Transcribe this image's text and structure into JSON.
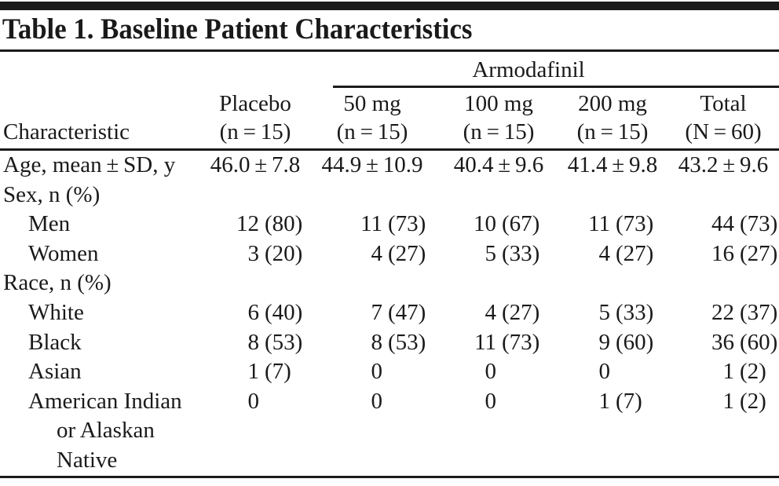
{
  "figure": {
    "title": "Table 1. Baseline Patient Characteristics"
  },
  "colors": {
    "ink": "#1a1a1a",
    "background": "#ffffff"
  },
  "table": {
    "group_header": "Armodafinil",
    "columns": [
      {
        "line1": "",
        "line2": "Characteristic"
      },
      {
        "line1": "Placebo",
        "line2": "(n = 15)"
      },
      {
        "line1": "50 mg",
        "line2": "(n = 15)"
      },
      {
        "line1": "100 mg",
        "line2": "(n = 15)"
      },
      {
        "line1": "200 mg",
        "line2": "(n = 15)"
      },
      {
        "line1": "Total",
        "line2": "(N = 60)"
      }
    ],
    "rows": [
      {
        "label": [
          "Age, mean ± SD, y"
        ],
        "indent": 0,
        "type": "center",
        "cells": [
          "46.0 ± 7.8",
          "44.9 ± 10.9",
          "40.4 ± 9.6",
          "41.4 ± 9.8",
          "43.2 ± 9.6"
        ]
      },
      {
        "label": [
          "Sex, n (%)"
        ],
        "indent": 0,
        "type": "none",
        "cells": []
      },
      {
        "label": [
          "Men"
        ],
        "indent": 1,
        "type": "np",
        "cells": [
          [
            "12",
            "(80)"
          ],
          [
            "11",
            "(73)"
          ],
          [
            "10",
            "(67)"
          ],
          [
            "11",
            "(73)"
          ],
          [
            "44",
            "(73)"
          ]
        ]
      },
      {
        "label": [
          "Women"
        ],
        "indent": 1,
        "type": "np",
        "cells": [
          [
            "3",
            "(20)"
          ],
          [
            "4",
            "(27)"
          ],
          [
            "5",
            "(33)"
          ],
          [
            "4",
            "(27)"
          ],
          [
            "16",
            "(27)"
          ]
        ]
      },
      {
        "label": [
          "Race, n (%)"
        ],
        "indent": 0,
        "type": "none",
        "cells": []
      },
      {
        "label": [
          "White"
        ],
        "indent": 1,
        "type": "np",
        "cells": [
          [
            "6",
            "(40)"
          ],
          [
            "7",
            "(47)"
          ],
          [
            "4",
            "(27)"
          ],
          [
            "5",
            "(33)"
          ],
          [
            "22",
            "(37)"
          ]
        ]
      },
      {
        "label": [
          "Black"
        ],
        "indent": 1,
        "type": "np",
        "cells": [
          [
            "8",
            "(53)"
          ],
          [
            "8",
            "(53)"
          ],
          [
            "11",
            "(73)"
          ],
          [
            "9",
            "(60)"
          ],
          [
            "36",
            "(60)"
          ]
        ]
      },
      {
        "label": [
          "Asian"
        ],
        "indent": 1,
        "type": "np",
        "cells": [
          [
            "1",
            "(7)"
          ],
          [
            "0",
            ""
          ],
          [
            "0",
            ""
          ],
          [
            "0",
            ""
          ],
          [
            "1",
            "(2)"
          ]
        ]
      },
      {
        "label": [
          "American Indian",
          "or Alaskan",
          "Native"
        ],
        "indent": 1,
        "type": "np",
        "cells": [
          [
            "0",
            ""
          ],
          [
            "0",
            ""
          ],
          [
            "0",
            ""
          ],
          [
            "1",
            "(7)"
          ],
          [
            "1",
            "(2)"
          ]
        ]
      }
    ]
  }
}
